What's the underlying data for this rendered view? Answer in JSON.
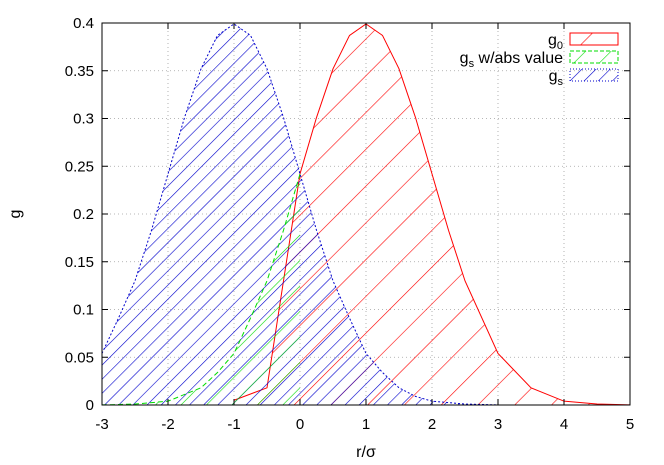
{
  "chart_data": {
    "type": "area",
    "xlabel": "r/σ",
    "ylabel": "g",
    "xlim": [
      -3,
      5
    ],
    "ylim": [
      0,
      0.4
    ],
    "grid": true,
    "legend_position": "top-right",
    "xticks": [
      "-3",
      "-2",
      "-1",
      "0",
      "1",
      "2",
      "3",
      "4",
      "5"
    ],
    "yticks": [
      "0",
      "0.05",
      "0.1",
      "0.15",
      "0.2",
      "0.25",
      "0.3",
      "0.35",
      "0.4"
    ],
    "series": [
      {
        "name": "g",
        "name_sub": "0",
        "color": "#ff0000",
        "fill": "hatch-wide-diagonal",
        "x": [
          -1,
          -0.5,
          0,
          0.25,
          0.5,
          0.75,
          1,
          1.25,
          1.5,
          1.75,
          2,
          2.25,
          2.5,
          3,
          3.5,
          4,
          4.5,
          5
        ],
        "y": [
          0.005,
          0.018,
          0.242,
          0.301,
          0.352,
          0.387,
          0.399,
          0.387,
          0.352,
          0.301,
          0.242,
          0.183,
          0.13,
          0.054,
          0.018,
          0.004,
          0.001,
          0.0001
        ]
      },
      {
        "name": "g",
        "name_sub": "s",
        "name_suffix": " w/abs value",
        "color": "#00dd00",
        "fill": "hatch-diagonal",
        "x": [
          -3,
          -2.5,
          -2,
          -1.5,
          -1.25,
          -1,
          -0.75,
          -0.5,
          -0.25,
          0
        ],
        "y": [
          0.0001,
          0.001,
          0.004,
          0.018,
          0.034,
          0.054,
          0.091,
          0.13,
          0.183,
          0.242
        ]
      },
      {
        "name": "g",
        "name_sub": "s",
        "color": "#0000cc",
        "fill": "hatch-dense",
        "x": [
          -3,
          -2.75,
          -2.5,
          -2.25,
          -2,
          -1.75,
          -1.5,
          -1.25,
          -1,
          -0.75,
          -0.5,
          -0.25,
          0,
          0.25,
          0.5,
          0.75,
          1,
          1.25,
          1.5,
          1.75,
          2,
          2.5,
          3
        ],
        "y": [
          0.054,
          0.091,
          0.13,
          0.183,
          0.242,
          0.301,
          0.352,
          0.387,
          0.399,
          0.387,
          0.352,
          0.301,
          0.242,
          0.183,
          0.13,
          0.091,
          0.054,
          0.034,
          0.018,
          0.009,
          0.004,
          0.001,
          0.0001
        ]
      }
    ]
  }
}
